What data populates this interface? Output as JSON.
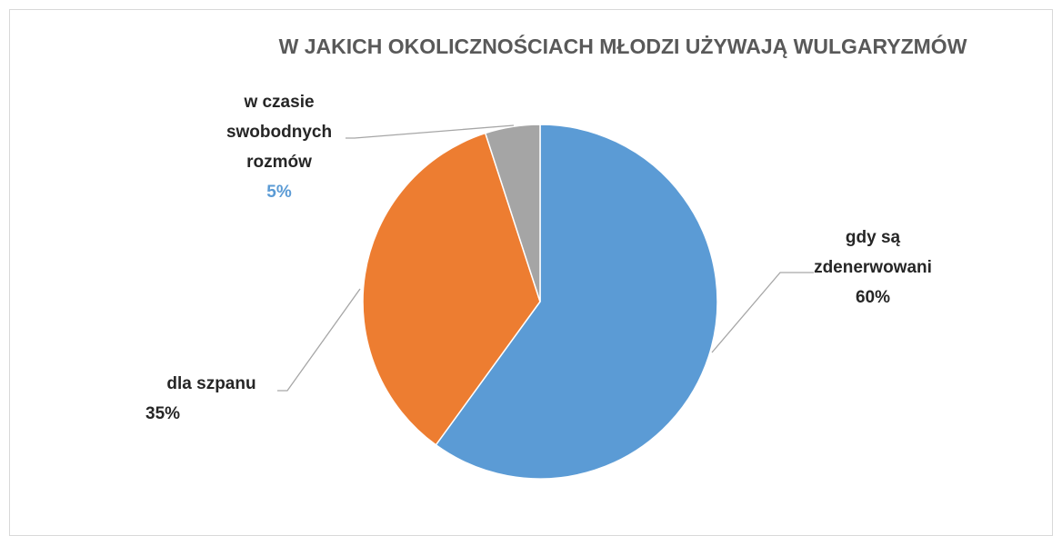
{
  "chart_data": {
    "type": "pie",
    "title": "W JAKICH OKOLICZNOŚCIACH MŁODZI UŻYWAJĄ WULGARYZMÓW",
    "categories": [
      "gdy są zdenerwowani",
      "dla szpanu",
      "w czasie swobodnych rozmów"
    ],
    "values": [
      60,
      35,
      5
    ],
    "value_labels": [
      "60%",
      "35%",
      "5%"
    ],
    "colors": [
      "#5b9bd5",
      "#ed7d31",
      "#a5a5a5"
    ]
  }
}
